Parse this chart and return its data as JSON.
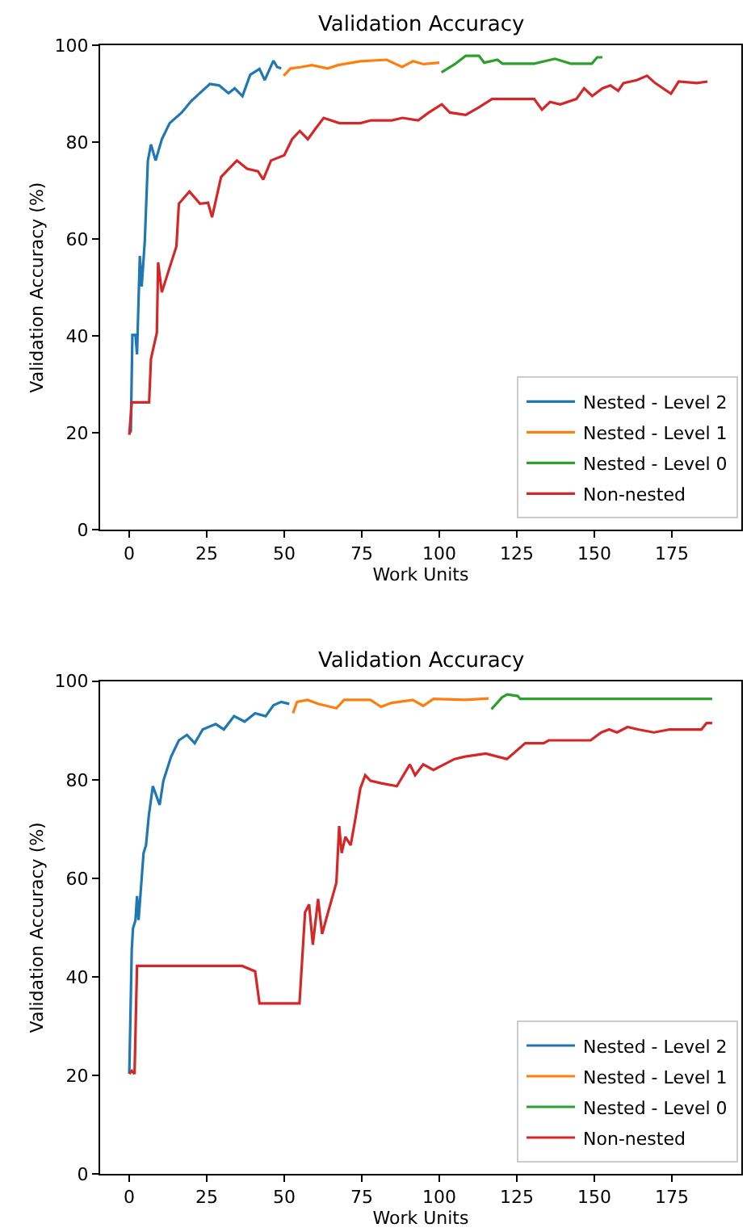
{
  "chart_data": [
    {
      "type": "line",
      "title": "Validation Accuracy",
      "xlabel": "Work Units",
      "ylabel": "Validation Accuracy (%)",
      "xlim": [
        -9.4,
        197.4
      ],
      "ylim": [
        0,
        100
      ],
      "xticks": [
        0,
        25,
        50,
        75,
        100,
        125,
        150,
        175
      ],
      "yticks": [
        0,
        20,
        40,
        60,
        80,
        100
      ],
      "grid": false,
      "legend": "bottom right",
      "series": [
        {
          "name": "Nested - Level 2",
          "color": "#1f77b4",
          "x": [
            0,
            0.5,
            1,
            2,
            2.5,
            3.4,
            4,
            5,
            6,
            7,
            8.5,
            10.5,
            13,
            16.9,
            20,
            23.6,
            26,
            29,
            32,
            34,
            36.5,
            39,
            42,
            43.7,
            46.5,
            47.7,
            49
          ],
          "values": [
            20,
            20.3,
            40.2,
            40.2,
            36.2,
            56.5,
            50.2,
            59.5,
            76.2,
            79.5,
            76.2,
            80.6,
            83.9,
            86.1,
            88.5,
            90.6,
            92,
            91.7,
            90.1,
            91.1,
            89.5,
            93.9,
            95.1,
            92.8,
            96.8,
            95.5,
            95.2
          ]
        },
        {
          "name": "Nested - Level 1",
          "color": "#ff7f0e",
          "x": [
            49.8,
            52,
            55.5,
            58.9,
            64,
            67.3,
            74.5,
            83,
            88,
            91.5,
            94.9,
            100
          ],
          "values": [
            93.7,
            95.2,
            95.5,
            95.9,
            95.2,
            95.9,
            96.7,
            97,
            95.5,
            96.7,
            96.1,
            96.4
          ]
        },
        {
          "name": "Nested - Level 0",
          "color": "#2ca02c",
          "x": [
            100.7,
            105,
            108.5,
            112.8,
            114.5,
            118.7,
            120.4,
            130.6,
            137.3,
            142.4,
            149.2,
            150.9,
            152.6
          ],
          "values": [
            94.4,
            96.1,
            97.8,
            97.8,
            96.4,
            97,
            96.2,
            96.2,
            97.2,
            96.2,
            96.2,
            97.5,
            97.5
          ]
        },
        {
          "name": "Non-nested",
          "color": "#d62728",
          "x": [
            0,
            0.8,
            6.4,
            7,
            8.9,
            9.3,
            10.5,
            12.7,
            15.2,
            16,
            19.4,
            22.8,
            25.4,
            26.7,
            29.6,
            32.1,
            34.7,
            38,
            41.5,
            43.2,
            45.7,
            50,
            52.5,
            55,
            57.6,
            60.1,
            62.7,
            67.8,
            74.5,
            78,
            84.7,
            88.1,
            93.2,
            96.6,
            100.8,
            103.4,
            108.5,
            112.8,
            117,
            130.6,
            133.1,
            135.7,
            139,
            144.2,
            146.7,
            149.3,
            152.6,
            155.2,
            157.7,
            159.4,
            163.7,
            167,
            169.6,
            174.7,
            177.2,
            183.1,
            186.5
          ],
          "values": [
            19.6,
            26.3,
            26.3,
            35.3,
            40.7,
            55.2,
            49,
            53.5,
            58.5,
            67.3,
            69.8,
            67.3,
            67.5,
            64.5,
            72.8,
            74.5,
            76.2,
            74.5,
            74,
            72.3,
            76.2,
            77.3,
            80.6,
            82.3,
            80.6,
            82.8,
            85,
            83.9,
            83.9,
            84.5,
            84.5,
            85,
            84.5,
            86.1,
            87.8,
            86.1,
            85.6,
            87.2,
            88.9,
            88.9,
            86.7,
            88.3,
            87.8,
            88.9,
            91.1,
            89.5,
            91.1,
            91.7,
            90.6,
            92.2,
            92.8,
            93.7,
            92.2,
            90,
            92.5,
            92.2,
            92.5
          ]
        }
      ]
    },
    {
      "type": "line",
      "title": "Validation Accuracy",
      "xlabel": "Work Units",
      "ylabel": "Validation Accuracy (%)",
      "xlim": [
        -9.4,
        197.4
      ],
      "ylim": [
        0,
        100
      ],
      "xticks": [
        0,
        25,
        50,
        75,
        100,
        125,
        150,
        175
      ],
      "yticks": [
        0,
        20,
        40,
        60,
        80,
        100
      ],
      "grid": false,
      "legend": "bottom right",
      "series": [
        {
          "name": "Nested - Level 2",
          "color": "#1f77b4",
          "x": [
            0,
            0.8,
            1.2,
            2,
            2.5,
            3,
            4.6,
            5.4,
            6.3,
            7.6,
            9.8,
            11,
            13.5,
            16,
            18.6,
            21.1,
            23.7,
            27.9,
            30.5,
            33.8,
            37.2,
            40.6,
            44,
            46.5,
            49,
            51.6
          ],
          "values": [
            20.3,
            45.5,
            49.8,
            51.5,
            56.4,
            51.5,
            65.1,
            66.7,
            72.7,
            78.7,
            74.9,
            79.8,
            84.7,
            88,
            89.1,
            87.4,
            90.2,
            91.3,
            90.2,
            92.9,
            91.8,
            93.5,
            92.9,
            95.1,
            95.8,
            95.4
          ]
        },
        {
          "name": "Nested - Level 1",
          "color": "#ff7f0e",
          "x": [
            52.8,
            54.1,
            57.5,
            60.9,
            66.8,
            69.3,
            77.8,
            81.2,
            84.6,
            91.4,
            94.8,
            98.1,
            108.3,
            115.9
          ],
          "values": [
            93.5,
            95.8,
            96.2,
            95.4,
            94.5,
            96.2,
            96.2,
            94.8,
            95.6,
            96.2,
            95,
            96.4,
            96.2,
            96.5
          ]
        },
        {
          "name": "Nested - Level 0",
          "color": "#2ca02c",
          "x": [
            116.8,
            120.2,
            121.9,
            125.3,
            126.1,
            188
          ],
          "values": [
            94.3,
            96.7,
            97.3,
            97,
            96.4,
            96.4
          ]
        },
        {
          "name": "Non-nested",
          "color": "#d62728",
          "x": [
            0,
            0.8,
            1.7,
            2.5,
            36.4,
            40.6,
            42,
            54.9,
            56.7,
            58,
            59.2,
            60.9,
            62.2,
            63.9,
            66.8,
            67.7,
            68.5,
            69.7,
            71.4,
            72.8,
            74.5,
            76.1,
            77.8,
            81.2,
            86.3,
            90.5,
            92.2,
            94.8,
            98.1,
            104.9,
            108.3,
            115,
            121.8,
            127.7,
            133.6,
            135.3,
            148.8,
            152.2,
            154.8,
            157.3,
            160.7,
            164.1,
            169.2,
            174.3,
            184.5,
            186.2,
            188
          ],
          "values": [
            20.3,
            20.9,
            20.3,
            42.2,
            42.2,
            41.1,
            34.6,
            34.6,
            53.1,
            54.7,
            46.5,
            55.8,
            48.7,
            52.6,
            59.1,
            70.6,
            65.1,
            68.4,
            66.7,
            71.6,
            78.2,
            80.9,
            79.8,
            79.3,
            78.7,
            83.1,
            80.9,
            83.1,
            82,
            84.2,
            84.7,
            85.3,
            84.2,
            87.4,
            87.4,
            88,
            88,
            89.6,
            90.2,
            89.6,
            90.7,
            90.2,
            89.6,
            90.2,
            90.2,
            91.5,
            91.5
          ]
        }
      ]
    }
  ]
}
